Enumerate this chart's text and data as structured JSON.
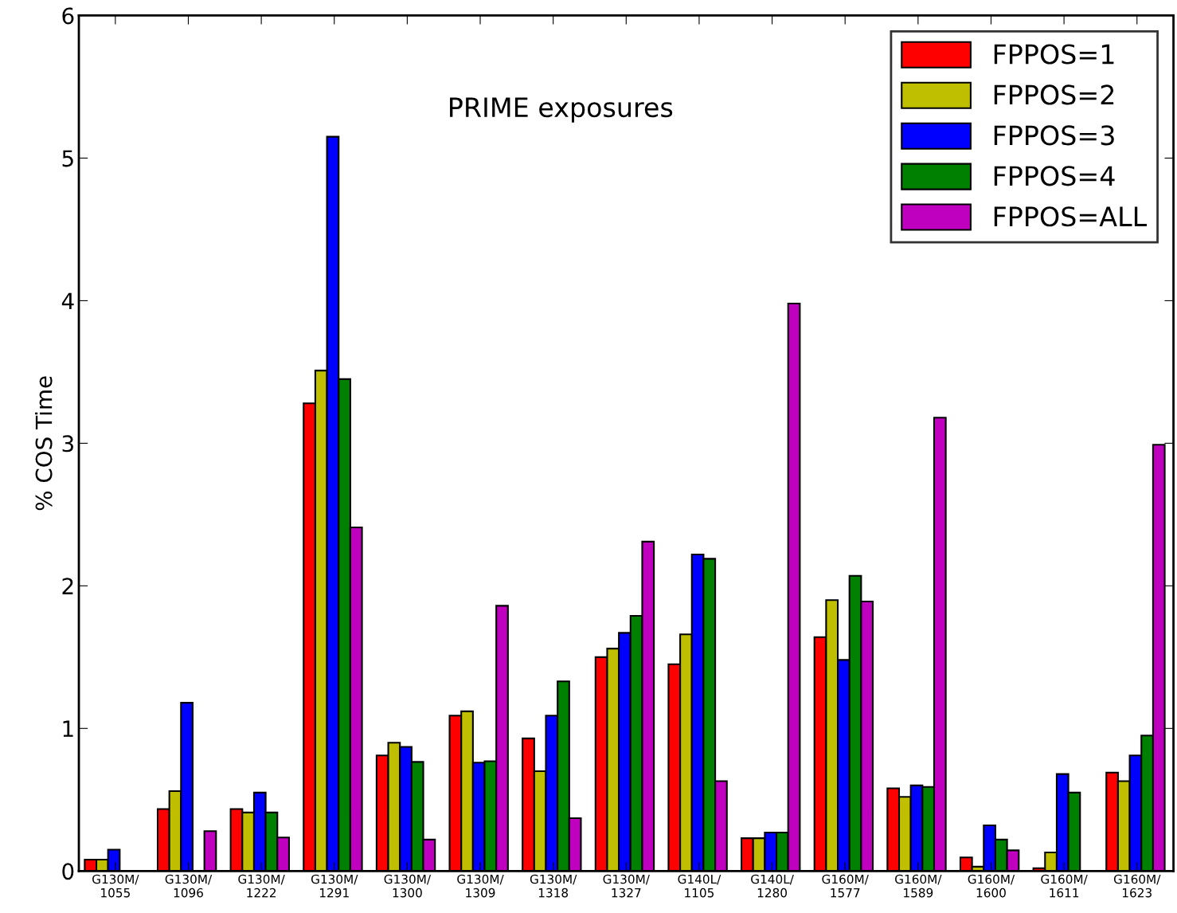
{
  "chart_data": {
    "type": "bar",
    "ylabel": "% COS Time",
    "annotations": [
      "PRIME exposures"
    ],
    "categories": [
      "G130M/\n1055",
      "G130M/\n1096",
      "G130M/\n1222",
      "G130M/\n1291",
      "G130M/\n1300",
      "G130M/\n1309",
      "G130M/\n1318",
      "G130M/\n1327",
      "G140L/\n1105",
      "G140L/\n1280",
      "G160M/\n1577",
      "G160M/\n1589",
      "G160M/\n1600",
      "G160M/\n1611",
      "G160M/\n1623"
    ],
    "series": [
      {
        "name": "FPPOS=1",
        "color": "#ff0000",
        "values": [
          0.08,
          0.435,
          0.435,
          3.28,
          0.81,
          1.09,
          0.93,
          1.5,
          1.45,
          0.23,
          1.64,
          0.58,
          0.095,
          0.02,
          0.69
        ]
      },
      {
        "name": "FPPOS=2",
        "color": "#bfbf00",
        "values": [
          0.08,
          0.56,
          0.41,
          3.51,
          0.9,
          1.12,
          0.7,
          1.56,
          1.66,
          0.23,
          1.9,
          0.52,
          0.03,
          0.13,
          0.63
        ]
      },
      {
        "name": "FPPOS=3",
        "color": "#0000ff",
        "values": [
          0.15,
          1.18,
          0.55,
          5.15,
          0.87,
          0.76,
          1.09,
          1.67,
          2.22,
          0.27,
          1.48,
          0.6,
          0.32,
          0.68,
          0.81
        ]
      },
      {
        "name": "FPPOS=4",
        "color": "#008000",
        "values": [
          null,
          null,
          0.41,
          3.45,
          0.765,
          0.77,
          1.33,
          1.79,
          2.19,
          0.27,
          2.07,
          0.59,
          0.22,
          0.55,
          0.95
        ]
      },
      {
        "name": "FPPOS=ALL",
        "color": "#bf00bf",
        "values": [
          null,
          0.28,
          0.235,
          2.41,
          0.22,
          1.86,
          0.37,
          2.31,
          0.63,
          3.98,
          1.89,
          3.18,
          0.145,
          null,
          2.99
        ]
      }
    ],
    "ylim": [
      0,
      6
    ],
    "yticks": [
      0,
      1,
      2,
      3,
      4,
      5,
      6
    ],
    "grid": false,
    "legend": "top right"
  }
}
